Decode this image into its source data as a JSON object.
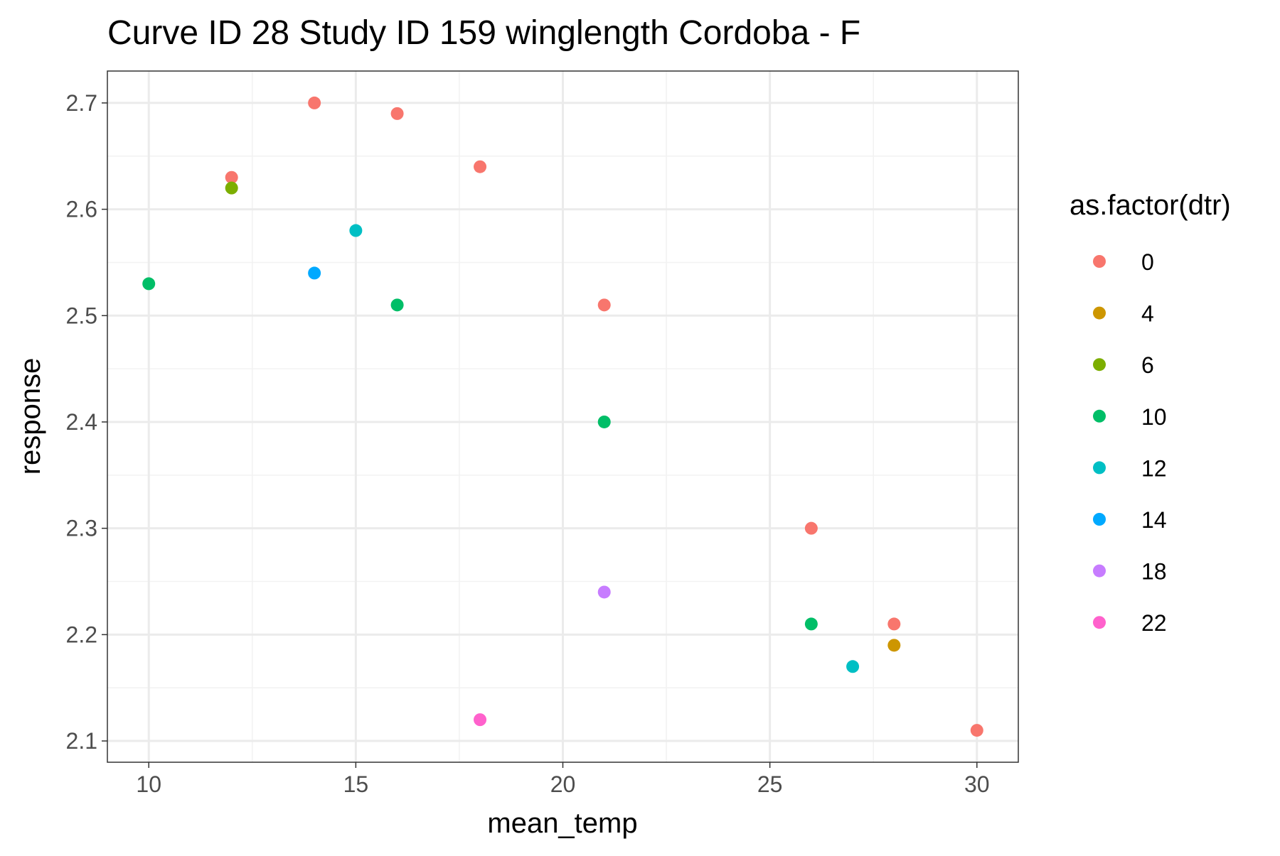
{
  "chart_data": {
    "type": "scatter",
    "title": "Curve ID 28 Study ID 159 winglength Cordoba - F",
    "xlabel": "mean_temp",
    "ylabel": "response",
    "xlim": [
      9,
      31
    ],
    "ylim": [
      2.08,
      2.73
    ],
    "x_ticks": [
      10,
      15,
      20,
      25,
      30
    ],
    "x_tick_labels": [
      "10",
      "15",
      "20",
      "25",
      "30"
    ],
    "y_ticks": [
      2.1,
      2.2,
      2.3,
      2.4,
      2.5,
      2.6,
      2.7
    ],
    "y_tick_labels": [
      "2.1",
      "2.2",
      "2.3",
      "2.4",
      "2.5",
      "2.6",
      "2.7"
    ],
    "grid": true,
    "legend": {
      "title": "as.factor(dtr)",
      "placement": "right"
    },
    "series": [
      {
        "name": "0",
        "color": "#F8766D",
        "points": [
          [
            12,
            2.63
          ],
          [
            14,
            2.7
          ],
          [
            16,
            2.69
          ],
          [
            18,
            2.64
          ],
          [
            21,
            2.51
          ],
          [
            26,
            2.3
          ],
          [
            28,
            2.21
          ],
          [
            30,
            2.11
          ]
        ]
      },
      {
        "name": "4",
        "color": "#CD9600",
        "points": [
          [
            28,
            2.19
          ]
        ]
      },
      {
        "name": "6",
        "color": "#7CAE00",
        "points": [
          [
            12,
            2.62
          ]
        ]
      },
      {
        "name": "10",
        "color": "#00BE67",
        "points": [
          [
            10,
            2.53
          ],
          [
            16,
            2.51
          ],
          [
            21,
            2.4
          ],
          [
            26,
            2.21
          ]
        ]
      },
      {
        "name": "12",
        "color": "#00BFC4",
        "points": [
          [
            15,
            2.58
          ],
          [
            27,
            2.17
          ]
        ]
      },
      {
        "name": "14",
        "color": "#00A9FF",
        "points": [
          [
            14,
            2.54
          ]
        ]
      },
      {
        "name": "18",
        "color": "#C77CFF",
        "points": [
          [
            21,
            2.24
          ]
        ]
      },
      {
        "name": "22",
        "color": "#FF61CC",
        "points": [
          [
            18,
            2.12
          ]
        ]
      }
    ]
  }
}
